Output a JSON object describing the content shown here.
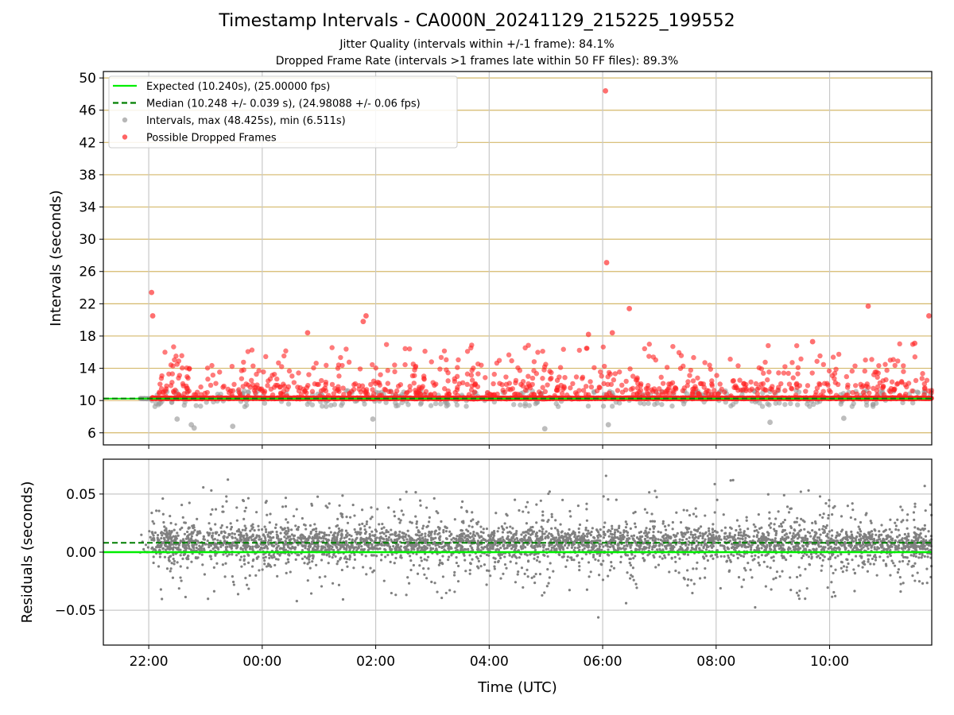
{
  "figure": {
    "title": "Timestamp Intervals - CA000N_20241129_215225_199552",
    "subtitle_1": "Jitter Quality (intervals within +/-1 frame): 84.1%",
    "subtitle_2": "Dropped Frame Rate (intervals >1 frames late within 50 FF files): 89.3%"
  },
  "chart_data": [
    {
      "type": "scatter",
      "panel": "top",
      "ylabel": "Intervals (seconds)",
      "x_range_hours": [
        -2.8,
        11.8
      ],
      "ylim": [
        4.5,
        50.8
      ],
      "yticks": [
        6,
        10,
        14,
        18,
        22,
        26,
        30,
        34,
        38,
        42,
        46,
        50
      ],
      "yticklabels": [
        "6",
        "10",
        "14",
        "18",
        "22",
        "26",
        "30",
        "34",
        "38",
        "42",
        "46",
        "50"
      ],
      "grid": "gold horizontal lines, grey vertical lines",
      "legend_position": "top-left",
      "legend": [
        {
          "label": "Expected (10.240s), (25.00000 fps)",
          "style": "solid-line",
          "color": "#00ee00"
        },
        {
          "label": "Median (10.248 +/- 0.039 s), (24.98088 +/- 0.06 fps)",
          "style": "dashed-line",
          "color": "#007f00"
        },
        {
          "label": "Intervals, max (48.425s), min (6.511s)",
          "style": "marker",
          "color": "#999999"
        },
        {
          "label": "Possible Dropped Frames",
          "style": "marker",
          "color": "#ff2222"
        }
      ],
      "expected_interval": 10.24,
      "median_interval": 10.248,
      "data_start_hour": -2.15,
      "data_end_hour": 11.8,
      "notable_points": [
        {
          "x": -1.95,
          "y": 23.4,
          "dropped": true
        },
        {
          "x": -1.93,
          "y": 20.5,
          "dropped": true
        },
        {
          "x": 6.05,
          "y": 48.4,
          "dropped": true
        },
        {
          "x": 6.07,
          "y": 27.1,
          "dropped": true
        },
        {
          "x": 6.47,
          "y": 21.4,
          "dropped": true
        },
        {
          "x": 6.17,
          "y": 18.4,
          "dropped": true
        },
        {
          "x": 5.75,
          "y": 18.2,
          "dropped": true
        },
        {
          "x": 10.68,
          "y": 21.7,
          "dropped": true
        },
        {
          "x": 11.75,
          "y": 20.5,
          "dropped": true
        },
        {
          "x": 1.78,
          "y": 19.8,
          "dropped": true
        },
        {
          "x": 1.83,
          "y": 20.5,
          "dropped": true
        },
        {
          "x": 0.8,
          "y": 18.4,
          "dropped": true
        },
        {
          "x": 11.5,
          "y": 17.1,
          "dropped": true
        },
        {
          "x": 9.7,
          "y": 17.3,
          "dropped": true
        },
        {
          "x": -1.25,
          "y": 7.0,
          "dropped": false
        },
        {
          "x": -1.2,
          "y": 6.6,
          "dropped": false
        },
        {
          "x": -0.52,
          "y": 6.8,
          "dropped": false
        },
        {
          "x": 4.98,
          "y": 6.5,
          "dropped": false
        },
        {
          "x": 6.1,
          "y": 7.0,
          "dropped": false
        },
        {
          "x": -1.5,
          "y": 7.7,
          "dropped": false
        },
        {
          "x": 1.95,
          "y": 7.7,
          "dropped": false
        },
        {
          "x": 8.95,
          "y": 7.3,
          "dropped": false
        },
        {
          "x": 10.25,
          "y": 7.8,
          "dropped": false
        }
      ]
    },
    {
      "type": "scatter",
      "panel": "bottom",
      "xlabel": "Time (UTC)",
      "ylabel": "Residuals (seconds)",
      "ylim": [
        -0.08,
        0.08
      ],
      "yticks": [
        -0.05,
        0.0,
        0.05
      ],
      "yticklabels": [
        "−0.05",
        "0.00",
        "0.05"
      ],
      "xticks_hours": [
        -2,
        0,
        2,
        4,
        6,
        8,
        10
      ],
      "xticklabels": [
        "22:00",
        "00:00",
        "02:00",
        "04:00",
        "06:00",
        "08:00",
        "10:00"
      ],
      "expected_residual": 0.0,
      "median_residual": 0.008,
      "point_color": "#808080",
      "typical_residual_band": [
        -0.02,
        0.025
      ]
    }
  ]
}
